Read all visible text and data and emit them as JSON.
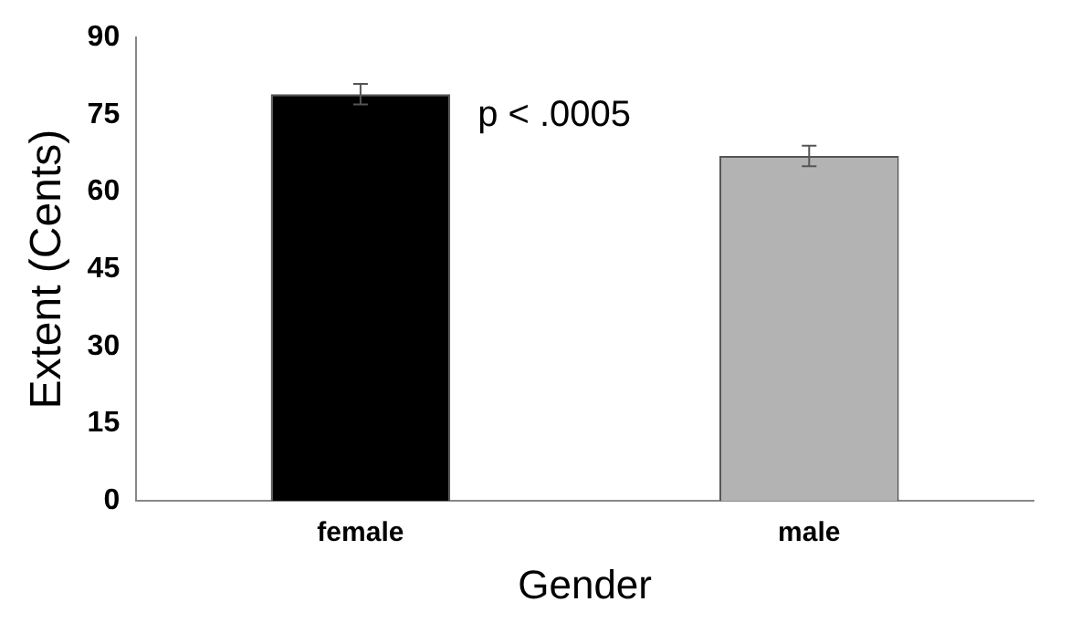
{
  "chart_data": {
    "type": "bar",
    "categories": [
      "female",
      "male"
    ],
    "values": [
      79,
      67
    ],
    "colors": [
      "#000000",
      "#b3b3b3"
    ],
    "errors": [
      2,
      2
    ],
    "xlabel": "Gender",
    "ylabel": "Extent (Cents)",
    "ylim": [
      0,
      90
    ],
    "yticks": [
      0,
      15,
      30,
      45,
      60,
      75,
      90
    ],
    "grid": false,
    "legend": false,
    "annotations": [
      "p < .0005"
    ]
  }
}
